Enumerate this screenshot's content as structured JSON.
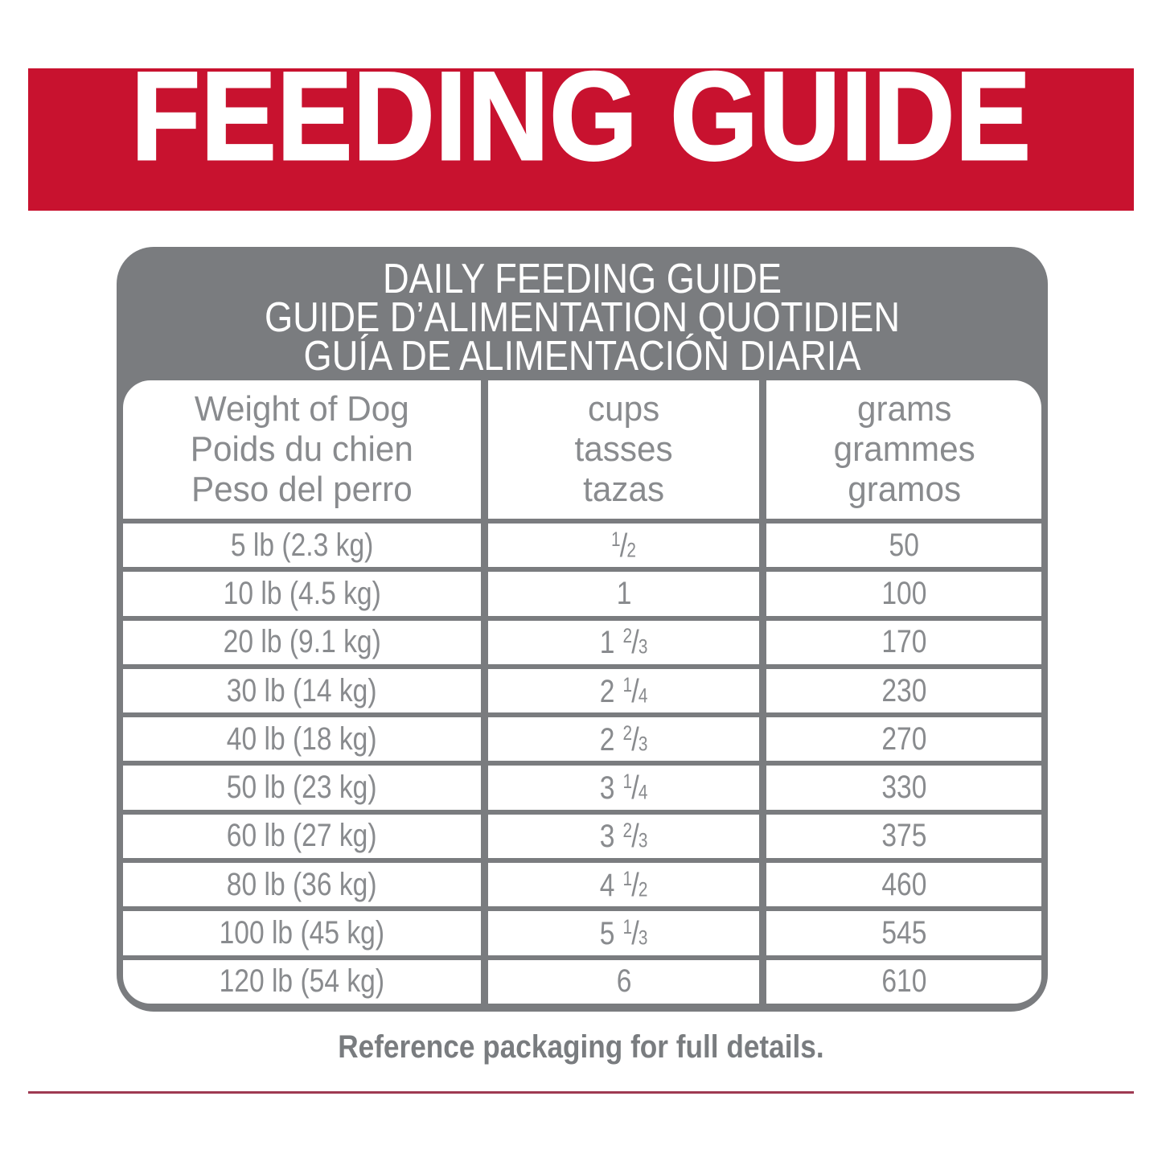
{
  "banner": {
    "title": "FEEDING GUIDE",
    "bg_color": "#C8122F",
    "text_color": "#FFFFFF"
  },
  "panel": {
    "bg_color": "#7A7C7F",
    "title_color": "#FFFFFF",
    "title_lines": [
      "DAILY FEEDING GUIDE",
      "GUIDE D’ALIMENTATION QUOTIDIEN",
      "GUÍA DE ALIMENTACIÓN DIARIA"
    ]
  },
  "table": {
    "text_color": "#898B8E",
    "grid_color": "#7A7C7F",
    "columns": [
      {
        "lines": [
          "Weight of Dog",
          "Poids du chien",
          "Peso del perro"
        ]
      },
      {
        "lines": [
          "cups",
          "tasses",
          "tazas"
        ]
      },
      {
        "lines": [
          "grams",
          "grammes",
          "gramos"
        ]
      }
    ],
    "rows": [
      {
        "weight": "5 lb (2.3 kg)",
        "cups_whole": "",
        "cups_num": "1",
        "cups_den": "2",
        "grams": "50"
      },
      {
        "weight": "10 lb (4.5 kg)",
        "cups_whole": "1",
        "cups_num": "",
        "cups_den": "",
        "grams": "100"
      },
      {
        "weight": "20 lb (9.1 kg)",
        "cups_whole": "1",
        "cups_num": "2",
        "cups_den": "3",
        "grams": "170"
      },
      {
        "weight": "30 lb (14 kg)",
        "cups_whole": "2",
        "cups_num": "1",
        "cups_den": "4",
        "grams": "230"
      },
      {
        "weight": "40 lb (18 kg)",
        "cups_whole": "2",
        "cups_num": "2",
        "cups_den": "3",
        "grams": "270"
      },
      {
        "weight": "50 lb (23 kg)",
        "cups_whole": "3",
        "cups_num": "1",
        "cups_den": "4",
        "grams": "330"
      },
      {
        "weight": "60 lb (27 kg)",
        "cups_whole": "3",
        "cups_num": "2",
        "cups_den": "3",
        "grams": "375"
      },
      {
        "weight": "80 lb (36 kg)",
        "cups_whole": "4",
        "cups_num": "1",
        "cups_den": "2",
        "grams": "460"
      },
      {
        "weight": "100 lb (45 kg)",
        "cups_whole": "5",
        "cups_num": "1",
        "cups_den": "3",
        "grams": "545"
      },
      {
        "weight": "120 lb (54 kg)",
        "cups_whole": "6",
        "cups_num": "",
        "cups_den": "",
        "grams": "610"
      }
    ]
  },
  "footer": {
    "note": "Reference packaging for full details.",
    "note_color": "#797C7F",
    "rule_color": "#9E3A52"
  }
}
